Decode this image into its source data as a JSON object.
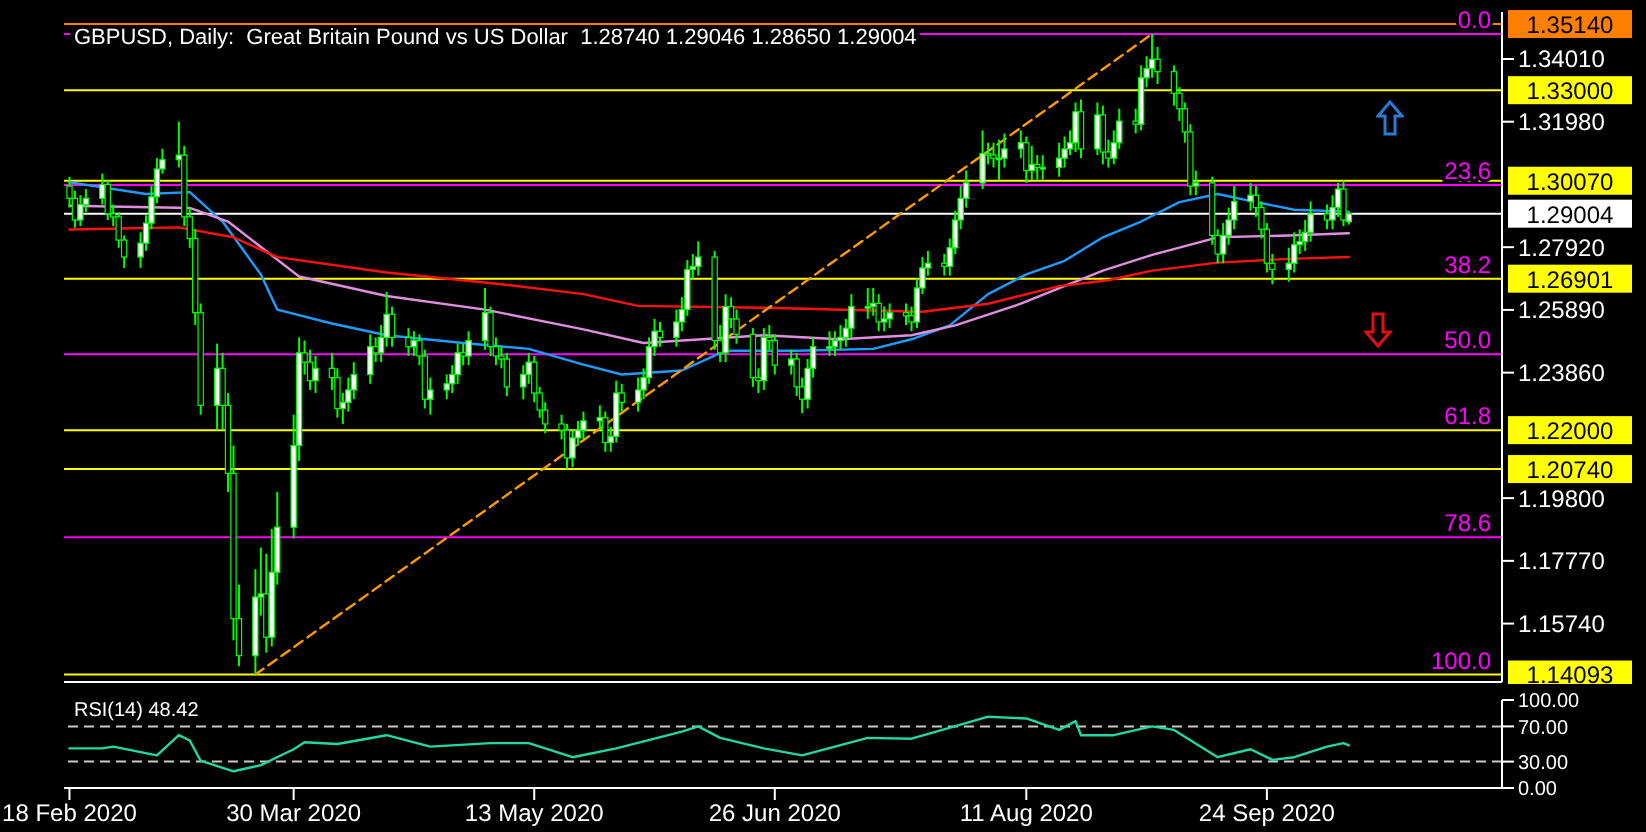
{
  "chart_data": [
    {
      "type": "candlestick",
      "title": "GBPUSD, Daily:  Great Britain Pound vs US Dollar  1.28740 1.29046 1.28650 1.29004",
      "color": "#00ff00",
      "x": [
        "2020-02-18",
        "2020-02-19",
        "2020-02-20",
        "2020-02-21",
        "2020-02-24",
        "2020-02-25",
        "2020-02-26",
        "2020-02-27",
        "2020-02-28",
        "2020-03-02",
        "2020-03-03",
        "2020-03-04",
        "2020-03-05",
        "2020-03-06",
        "2020-03-09",
        "2020-03-10",
        "2020-03-11",
        "2020-03-12",
        "2020-03-13",
        "2020-03-16",
        "2020-03-17",
        "2020-03-18",
        "2020-03-19",
        "2020-03-20",
        "2020-03-23",
        "2020-03-24",
        "2020-03-25",
        "2020-03-26",
        "2020-03-27",
        "2020-03-30",
        "2020-03-31",
        "2020-04-01",
        "2020-04-02",
        "2020-04-03",
        "2020-04-06",
        "2020-04-07",
        "2020-04-08",
        "2020-04-09",
        "2020-04-10",
        "2020-04-13",
        "2020-04-14",
        "2020-04-15",
        "2020-04-16",
        "2020-04-17",
        "2020-04-20",
        "2020-04-21",
        "2020-04-22",
        "2020-04-23",
        "2020-04-24",
        "2020-04-27",
        "2020-04-28",
        "2020-04-29",
        "2020-04-30",
        "2020-05-01",
        "2020-05-04",
        "2020-05-05",
        "2020-05-06",
        "2020-05-07",
        "2020-05-08",
        "2020-05-11",
        "2020-05-12",
        "2020-05-13",
        "2020-05-14",
        "2020-05-15",
        "2020-05-18",
        "2020-05-19",
        "2020-05-20",
        "2020-05-21",
        "2020-05-22",
        "2020-05-25",
        "2020-05-26",
        "2020-05-27",
        "2020-05-28",
        "2020-05-29",
        "2020-06-01",
        "2020-06-02",
        "2020-06-03",
        "2020-06-04",
        "2020-06-05",
        "2020-06-08",
        "2020-06-09",
        "2020-06-10",
        "2020-06-11",
        "2020-06-12",
        "2020-06-15",
        "2020-06-16",
        "2020-06-17",
        "2020-06-18",
        "2020-06-19",
        "2020-06-22",
        "2020-06-23",
        "2020-06-24",
        "2020-06-25",
        "2020-06-26",
        "2020-06-29",
        "2020-06-30",
        "2020-07-01",
        "2020-07-02",
        "2020-07-03",
        "2020-07-06",
        "2020-07-07",
        "2020-07-08",
        "2020-07-09",
        "2020-07-10",
        "2020-07-13",
        "2020-07-14",
        "2020-07-15",
        "2020-07-16",
        "2020-07-17",
        "2020-07-20",
        "2020-07-21",
        "2020-07-22",
        "2020-07-23",
        "2020-07-24",
        "2020-07-27",
        "2020-07-28",
        "2020-07-29",
        "2020-07-30",
        "2020-07-31",
        "2020-08-03",
        "2020-08-04",
        "2020-08-05",
        "2020-08-06",
        "2020-08-07",
        "2020-08-10",
        "2020-08-11",
        "2020-08-12",
        "2020-08-13",
        "2020-08-14",
        "2020-08-17",
        "2020-08-18",
        "2020-08-19",
        "2020-08-20",
        "2020-08-21",
        "2020-08-24",
        "2020-08-25",
        "2020-08-26",
        "2020-08-27",
        "2020-08-28",
        "2020-08-31",
        "2020-09-01",
        "2020-09-02",
        "2020-09-03",
        "2020-09-04",
        "2020-09-07",
        "2020-09-08",
        "2020-09-09",
        "2020-09-10",
        "2020-09-11",
        "2020-09-14",
        "2020-09-15",
        "2020-09-16",
        "2020-09-17",
        "2020-09-18",
        "2020-09-21",
        "2020-09-22",
        "2020-09-23",
        "2020-09-24",
        "2020-09-25",
        "2020-09-28",
        "2020-09-29",
        "2020-09-30",
        "2020-10-01",
        "2020-10-02",
        "2020-10-05",
        "2020-10-06",
        "2020-10-07",
        "2020-10-08",
        "2020-10-09"
      ],
      "ohlc": [
        [
          1.299,
          1.302,
          1.292,
          1.295
        ],
        [
          1.295,
          1.2975,
          1.2855,
          1.288
        ],
        [
          1.288,
          1.296,
          1.286,
          1.293
        ],
        [
          1.293,
          1.298,
          1.2905,
          1.295
        ],
        [
          1.295,
          1.303,
          1.293,
          1.2995
        ],
        [
          1.2995,
          1.301,
          1.288,
          1.29
        ],
        [
          1.29,
          1.293,
          1.286,
          1.289
        ],
        [
          1.289,
          1.2905,
          1.279,
          1.2815
        ],
        [
          1.2815,
          1.283,
          1.2725,
          1.276
        ],
        [
          1.276,
          1.284,
          1.2725,
          1.2805
        ],
        [
          1.2805,
          1.2895,
          1.278,
          1.287
        ],
        [
          1.287,
          1.299,
          1.285,
          1.2955
        ],
        [
          1.2955,
          1.308,
          1.2935,
          1.3045
        ],
        [
          1.3045,
          1.311,
          1.303,
          1.3075
        ],
        [
          1.3075,
          1.3198,
          1.305,
          1.309
        ],
        [
          1.309,
          1.312,
          1.286,
          1.289
        ],
        [
          1.289,
          1.292,
          1.279,
          1.282
        ],
        [
          1.282,
          1.285,
          1.254,
          1.258
        ],
        [
          1.258,
          1.261,
          1.225,
          1.228
        ],
        [
          1.228,
          1.248,
          1.22,
          1.24
        ],
        [
          1.24,
          1.245,
          1.22,
          1.228
        ],
        [
          1.228,
          1.232,
          1.2,
          1.206
        ],
        [
          1.206,
          1.215,
          1.152,
          1.159
        ],
        [
          1.159,
          1.17,
          1.1436,
          1.147
        ],
        [
          1.147,
          1.175,
          1.1409,
          1.166
        ],
        [
          1.166,
          1.182,
          1.16,
          1.167
        ],
        [
          1.167,
          1.18,
          1.148,
          1.153
        ],
        [
          1.153,
          1.188,
          1.15,
          1.174
        ],
        [
          1.174,
          1.2,
          1.17,
          1.1886
        ],
        [
          1.1886,
          1.225,
          1.185,
          1.215
        ],
        [
          1.215,
          1.25,
          1.21,
          1.245
        ],
        [
          1.245,
          1.249,
          1.238,
          1.242
        ],
        [
          1.242,
          1.246,
          1.233,
          1.236
        ],
        [
          1.236,
          1.244,
          1.232,
          1.24
        ],
        [
          1.24,
          1.245,
          1.233,
          1.237
        ],
        [
          1.237,
          1.24,
          1.224,
          1.227
        ],
        [
          1.227,
          1.232,
          1.222,
          1.229
        ],
        [
          1.229,
          1.237,
          1.226,
          1.233
        ],
        [
          1.233,
          1.242,
          1.23,
          1.238
        ],
        [
          1.238,
          1.251,
          1.235,
          1.247
        ],
        [
          1.247,
          1.25,
          1.242,
          1.245
        ],
        [
          1.245,
          1.254,
          1.242,
          1.25
        ],
        [
          1.25,
          1.2647,
          1.247,
          1.2575
        ],
        [
          1.2575,
          1.26,
          1.247,
          1.25
        ],
        [
          1.25,
          1.253,
          1.244,
          1.247
        ],
        [
          1.247,
          1.252,
          1.244,
          1.249
        ],
        [
          1.249,
          1.251,
          1.241,
          1.244
        ],
        [
          1.244,
          1.246,
          1.227,
          1.23
        ],
        [
          1.23,
          1.237,
          1.225,
          1.233
        ],
        [
          1.233,
          1.238,
          1.23,
          1.235
        ],
        [
          1.235,
          1.241,
          1.232,
          1.238
        ],
        [
          1.238,
          1.248,
          1.235,
          1.245
        ],
        [
          1.245,
          1.248,
          1.241,
          1.244
        ],
        [
          1.244,
          1.252,
          1.241,
          1.249
        ],
        [
          1.249,
          1.266,
          1.246,
          1.258
        ],
        [
          1.258,
          1.26,
          1.244,
          1.247
        ],
        [
          1.247,
          1.25,
          1.241,
          1.244
        ],
        [
          1.244,
          1.247,
          1.24,
          1.243
        ],
        [
          1.243,
          1.245,
          1.231,
          1.234
        ],
        [
          1.234,
          1.241,
          1.23,
          1.238
        ],
        [
          1.238,
          1.245,
          1.235,
          1.242
        ],
        [
          1.242,
          1.244,
          1.229,
          1.232
        ],
        [
          1.232,
          1.234,
          1.224,
          1.2265
        ],
        [
          1.2265,
          1.229,
          1.219,
          1.222
        ],
        [
          1.222,
          1.225,
          1.217,
          1.22
        ],
        [
          1.22,
          1.222,
          1.2074,
          1.211
        ],
        [
          1.211,
          1.22,
          1.208,
          1.2175
        ],
        [
          1.2175,
          1.223,
          1.215,
          1.22
        ],
        [
          1.22,
          1.226,
          1.217,
          1.223
        ],
        [
          1.223,
          1.228,
          1.22,
          1.224
        ],
        [
          1.224,
          1.226,
          1.213,
          1.216
        ],
        [
          1.216,
          1.221,
          1.213,
          1.218
        ],
        [
          1.218,
          1.236,
          1.216,
          1.232
        ],
        [
          1.232,
          1.235,
          1.226,
          1.229
        ],
        [
          1.229,
          1.237,
          1.226,
          1.233
        ],
        [
          1.233,
          1.24,
          1.23,
          1.237
        ],
        [
          1.237,
          1.25,
          1.235,
          1.247
        ],
        [
          1.247,
          1.256,
          1.244,
          1.252
        ],
        [
          1.252,
          1.255,
          1.247,
          1.25
        ],
        [
          1.25,
          1.259,
          1.247,
          1.255
        ],
        [
          1.255,
          1.263,
          1.252,
          1.259
        ],
        [
          1.259,
          1.275,
          1.257,
          1.272
        ],
        [
          1.272,
          1.277,
          1.269,
          1.273
        ],
        [
          1.273,
          1.2811,
          1.27,
          1.276
        ],
        [
          1.276,
          1.278,
          1.246,
          1.249
        ],
        [
          1.249,
          1.254,
          1.242,
          1.245
        ],
        [
          1.245,
          1.264,
          1.242,
          1.26
        ],
        [
          1.26,
          1.263,
          1.253,
          1.256
        ],
        [
          1.256,
          1.259,
          1.248,
          1.251
        ],
        [
          1.251,
          1.253,
          1.234,
          1.237
        ],
        [
          1.237,
          1.24,
          1.232,
          1.236
        ],
        [
          1.236,
          1.253,
          1.233,
          1.25
        ],
        [
          1.25,
          1.254,
          1.246,
          1.249
        ],
        [
          1.249,
          1.251,
          1.238,
          1.241
        ],
        [
          1.241,
          1.246,
          1.238,
          1.243
        ],
        [
          1.243,
          1.245,
          1.231,
          1.234
        ],
        [
          1.234,
          1.237,
          1.2255,
          1.23
        ],
        [
          1.23,
          1.243,
          1.227,
          1.24
        ],
        [
          1.24,
          1.25,
          1.237,
          1.247
        ],
        [
          1.247,
          1.252,
          1.244,
          1.247
        ],
        [
          1.247,
          1.252,
          1.244,
          1.249
        ],
        [
          1.249,
          1.254,
          1.246,
          1.25
        ],
        [
          1.25,
          1.256,
          1.247,
          1.253
        ],
        [
          1.253,
          1.264,
          1.25,
          1.26
        ],
        [
          1.26,
          1.266,
          1.256,
          1.26
        ],
        [
          1.26,
          1.266,
          1.257,
          1.261
        ],
        [
          1.261,
          1.264,
          1.252,
          1.255
        ],
        [
          1.255,
          1.26,
          1.252,
          1.256
        ],
        [
          1.256,
          1.261,
          1.253,
          1.258
        ],
        [
          1.258,
          1.261,
          1.254,
          1.257
        ],
        [
          1.257,
          1.26,
          1.252,
          1.255
        ],
        [
          1.255,
          1.269,
          1.253,
          1.266
        ],
        [
          1.266,
          1.276,
          1.264,
          1.2725
        ],
        [
          1.2725,
          1.278,
          1.27,
          1.274
        ],
        [
          1.274,
          1.277,
          1.27,
          1.273
        ],
        [
          1.273,
          1.282,
          1.27,
          1.279
        ],
        [
          1.279,
          1.291,
          1.277,
          1.288
        ],
        [
          1.288,
          1.299,
          1.285,
          1.295
        ],
        [
          1.295,
          1.304,
          1.292,
          1.3
        ],
        [
          1.3,
          1.317,
          1.298,
          1.3095
        ],
        [
          1.3095,
          1.313,
          1.306,
          1.309
        ],
        [
          1.309,
          1.313,
          1.305,
          1.308
        ],
        [
          1.308,
          1.314,
          1.301,
          1.308
        ],
        [
          1.308,
          1.316,
          1.305,
          1.311
        ],
        [
          1.311,
          1.317,
          1.308,
          1.313
        ],
        [
          1.313,
          1.315,
          1.3,
          1.304
        ],
        [
          1.304,
          1.312,
          1.301,
          1.306
        ],
        [
          1.306,
          1.309,
          1.301,
          1.305
        ],
        [
          1.305,
          1.309,
          1.301,
          1.305
        ],
        [
          1.305,
          1.313,
          1.302,
          1.308
        ],
        [
          1.308,
          1.315,
          1.305,
          1.311
        ],
        [
          1.311,
          1.317,
          1.309,
          1.313
        ],
        [
          1.313,
          1.326,
          1.31,
          1.323
        ],
        [
          1.323,
          1.327,
          1.308,
          1.311
        ],
        [
          1.311,
          1.326,
          1.309,
          1.322
        ],
        [
          1.322,
          1.325,
          1.306,
          1.31
        ],
        [
          1.31,
          1.314,
          1.305,
          1.308
        ],
        [
          1.308,
          1.317,
          1.306,
          1.313
        ],
        [
          1.313,
          1.324,
          1.311,
          1.32
        ],
        [
          1.32,
          1.324,
          1.316,
          1.319
        ],
        [
          1.319,
          1.338,
          1.317,
          1.334
        ],
        [
          1.334,
          1.341,
          1.331,
          1.337
        ],
        [
          1.337,
          1.3482,
          1.334,
          1.34
        ],
        [
          1.34,
          1.344,
          1.332,
          1.336
        ],
        [
          1.336,
          1.338,
          1.325,
          1.329
        ],
        [
          1.329,
          1.331,
          1.32,
          1.324
        ],
        [
          1.324,
          1.326,
          1.313,
          1.3165
        ],
        [
          1.3165,
          1.319,
          1.296,
          1.299
        ],
        [
          1.299,
          1.304,
          1.296,
          1.3
        ],
        [
          1.3,
          1.302,
          1.28,
          1.283
        ],
        [
          1.283,
          1.285,
          1.274,
          1.277
        ],
        [
          1.277,
          1.287,
          1.274,
          1.283
        ],
        [
          1.283,
          1.292,
          1.28,
          1.288
        ],
        [
          1.288,
          1.299,
          1.285,
          1.294
        ],
        [
          1.294,
          1.3,
          1.291,
          1.296
        ],
        [
          1.296,
          1.299,
          1.289,
          1.292
        ],
        [
          1.292,
          1.294,
          1.282,
          1.285
        ],
        [
          1.285,
          1.287,
          1.271,
          1.274
        ],
        [
          1.274,
          1.277,
          1.2672,
          1.272
        ],
        [
          1.272,
          1.279,
          1.268,
          1.274
        ],
        [
          1.274,
          1.284,
          1.271,
          1.28
        ],
        [
          1.28,
          1.285,
          1.277,
          1.281
        ],
        [
          1.281,
          1.288,
          1.278,
          1.284
        ],
        [
          1.284,
          1.294,
          1.281,
          1.29
        ],
        [
          1.29,
          1.293,
          1.285,
          1.288
        ],
        [
          1.288,
          1.296,
          1.285,
          1.292
        ],
        [
          1.292,
          1.3,
          1.289,
          1.298
        ],
        [
          1.298,
          1.3008,
          1.286,
          1.288
        ],
        [
          1.2874,
          1.29046,
          1.2865,
          1.29004
        ]
      ],
      "series": [
        {
          "type": "line",
          "color": "#1e9bff",
          "x": [
            "2020-02-18",
            "2020-03-03",
            "2020-03-11",
            "2020-03-17",
            "2020-03-24",
            "2020-03-27",
            "2020-04-06",
            "2020-04-16",
            "2020-04-30",
            "2020-05-12",
            "2020-05-22",
            "2020-05-29",
            "2020-06-09",
            "2020-06-17",
            "2020-06-30",
            "2020-07-14",
            "2020-07-21",
            "2020-07-28",
            "2020-08-04",
            "2020-08-11",
            "2020-08-18",
            "2020-08-25",
            "2020-09-01",
            "2020-09-08",
            "2020-09-15",
            "2020-09-22",
            "2020-09-29",
            "2020-10-09"
          ],
          "values": [
            1.3002,
            1.2964,
            1.297,
            1.2875,
            1.2704,
            1.259,
            1.2545,
            1.2507,
            1.2482,
            1.2463,
            1.2412,
            1.238,
            1.2393,
            1.2457,
            1.2457,
            1.2463,
            1.2494,
            1.2539,
            1.264,
            1.2704,
            1.2748,
            1.2824,
            1.2875,
            1.2938,
            1.2964,
            1.2938,
            1.2913,
            1.2907
          ]
        },
        {
          "type": "line",
          "color": "#e08ee0",
          "x": [
            "2020-02-18",
            "2020-03-11",
            "2020-03-18",
            "2020-03-31",
            "2020-04-16",
            "2020-05-04",
            "2020-05-22",
            "2020-06-02",
            "2020-06-24",
            "2020-07-08",
            "2020-07-21",
            "2020-07-29",
            "2020-08-10",
            "2020-08-25",
            "2020-09-03",
            "2020-09-15",
            "2020-09-28",
            "2020-10-09"
          ],
          "values": [
            1.2926,
            1.2919,
            1.2875,
            1.2697,
            1.2634,
            1.259,
            1.2526,
            1.2482,
            1.2507,
            1.2494,
            1.2507,
            1.2539,
            1.2609,
            1.2716,
            1.2767,
            1.2824,
            1.283,
            1.2837
          ]
        },
        {
          "type": "line",
          "color": "#ff1010",
          "x": [
            "2020-02-18",
            "2020-03-09",
            "2020-03-19",
            "2020-03-27",
            "2020-04-16",
            "2020-05-07",
            "2020-05-22",
            "2020-06-01",
            "2020-06-24",
            "2020-07-23",
            "2020-08-04",
            "2020-08-17",
            "2020-08-26",
            "2020-09-03",
            "2020-09-15",
            "2020-09-28",
            "2020-10-09"
          ],
          "values": [
            1.2849,
            1.2856,
            1.2824,
            1.276,
            1.271,
            1.2672,
            1.264,
            1.2602,
            1.2596,
            1.2583,
            1.2609,
            1.2666,
            1.2685,
            1.2716,
            1.2742,
            1.2754,
            1.276
          ]
        },
        {
          "type": "line",
          "color": "#ff9900",
          "line_style": "dashed",
          "x": [
            "2020-03-23",
            "2020-09-03"
          ],
          "values": [
            1.1409,
            1.3482
          ]
        }
      ],
      "xlim": [
        "2020-02-17",
        "2020-11-06"
      ],
      "ylim": [
        1.1385,
        1.3553
      ],
      "yticks": [
        {
          "value": 1.3401,
          "label": "1.34010"
        },
        {
          "value": 1.3198,
          "label": "1.31980"
        },
        {
          "value": 1.2792,
          "label": "1.27920"
        },
        {
          "value": 1.2589,
          "label": "1.25890"
        },
        {
          "value": 1.2386,
          "label": "1.23860"
        },
        {
          "value": 1.198,
          "label": "1.19800"
        },
        {
          "value": 1.1777,
          "label": "1.17770"
        },
        {
          "value": 1.1574,
          "label": "1.15740"
        }
      ],
      "tick_labels": "y",
      "ref_lines": [
        {
          "axis": "y",
          "value": 1.3514,
          "label": "1.35140",
          "color": "#ff8000"
        },
        {
          "axis": "y",
          "value": 1.33,
          "label": "1.33000",
          "color": "#ffff00"
        },
        {
          "axis": "y",
          "value": 1.3007,
          "label": "1.30070",
          "color": "#ffff00"
        },
        {
          "axis": "y",
          "value": 1.29004,
          "label": "1.29004",
          "color": "#ffffff"
        },
        {
          "axis": "y",
          "value": 1.26901,
          "label": "1.26901",
          "color": "#ffff00"
        },
        {
          "axis": "y",
          "value": 1.22,
          "label": "1.22000",
          "color": "#ffff00"
        },
        {
          "axis": "y",
          "value": 1.2074,
          "label": "1.20740",
          "color": "#ffff00"
        },
        {
          "axis": "y",
          "value": 1.14093,
          "label": "1.14093",
          "color": "#ffff00"
        },
        {
          "axis": "y",
          "value": 1.3482,
          "color": "#ff00ff"
        },
        {
          "axis": "y",
          "value": 1.2993,
          "color": "#ff00ff"
        },
        {
          "axis": "y",
          "value": 1.24455,
          "color": "#ff00ff"
        },
        {
          "axis": "y",
          "value": 1.1853,
          "color": "#ff00ff"
        }
      ],
      "annotations": [
        {
          "text": "0.0",
          "x": "2020-11-04",
          "y": 1.3482
        },
        {
          "text": "23.6",
          "x": "2020-11-04",
          "y": 1.2993
        },
        {
          "text": "38.2",
          "x": "2020-11-04",
          "y": 1.269
        },
        {
          "text": "50.0",
          "x": "2020-11-04",
          "y": 1.24455
        },
        {
          "text": "61.8",
          "x": "2020-11-04",
          "y": 1.2201
        },
        {
          "text": "78.6",
          "x": "2020-11-04",
          "y": 1.1853
        },
        {
          "text": "100.0",
          "x": "2020-11-04",
          "y": 1.1409
        }
      ]
    },
    {
      "type": "line",
      "title": "RSI(14) 48.42",
      "color": "#20d8a0",
      "x": [
        "2020-02-18",
        "2020-02-24",
        "2020-02-26",
        "2020-03-05",
        "2020-03-09",
        "2020-03-11",
        "2020-03-13",
        "2020-03-19",
        "2020-03-24",
        "2020-03-30",
        "2020-04-01",
        "2020-04-07",
        "2020-04-16",
        "2020-04-24",
        "2020-05-05",
        "2020-05-12",
        "2020-05-20",
        "2020-05-28",
        "2020-06-09",
        "2020-06-12",
        "2020-06-16",
        "2020-06-24",
        "2020-07-01",
        "2020-07-13",
        "2020-07-21",
        "2020-07-30",
        "2020-08-04",
        "2020-08-11",
        "2020-08-17",
        "2020-08-20",
        "2020-08-21",
        "2020-08-27",
        "2020-09-03",
        "2020-09-07",
        "2020-09-15",
        "2020-09-21",
        "2020-09-25",
        "2020-09-29",
        "2020-10-05",
        "2020-10-08",
        "2020-10-09"
      ],
      "values": [
        45,
        45,
        47,
        37,
        60,
        54,
        31,
        19,
        26,
        44,
        52,
        50,
        60,
        47,
        51,
        51,
        35,
        45,
        64,
        70,
        57,
        45,
        37,
        57,
        56,
        72,
        81,
        79,
        66,
        76,
        60,
        60,
        70,
        66,
        35,
        44,
        32,
        35,
        47,
        51,
        48.42
      ],
      "xlim": [
        "2020-02-17",
        "2020-11-06"
      ],
      "ylim": [
        0,
        100
      ],
      "yticks": [
        {
          "value": 0,
          "label": "0.00"
        },
        {
          "value": 30,
          "label": "30.00"
        },
        {
          "value": 70,
          "label": "70.00"
        },
        {
          "value": 100,
          "label": "100.00"
        }
      ],
      "xticks": [
        {
          "value": "2020-02-18",
          "label": "18 Feb 2020"
        },
        {
          "value": "2020-03-30",
          "label": "30 Mar 2020"
        },
        {
          "value": "2020-05-13",
          "label": "13 May 2020"
        },
        {
          "value": "2020-06-26",
          "label": "26 Jun 2020"
        },
        {
          "value": "2020-08-11",
          "label": "11 Aug 2020"
        },
        {
          "value": "2020-09-24",
          "label": "24 Sep 2020"
        }
      ],
      "ref_lines": [
        {
          "axis": "y",
          "value": 70,
          "color": "#c8c8c8",
          "line_style": "dashed"
        },
        {
          "axis": "y",
          "value": 30,
          "color": "#c8c8c8",
          "line_style": "dashed"
        }
      ]
    }
  ]
}
